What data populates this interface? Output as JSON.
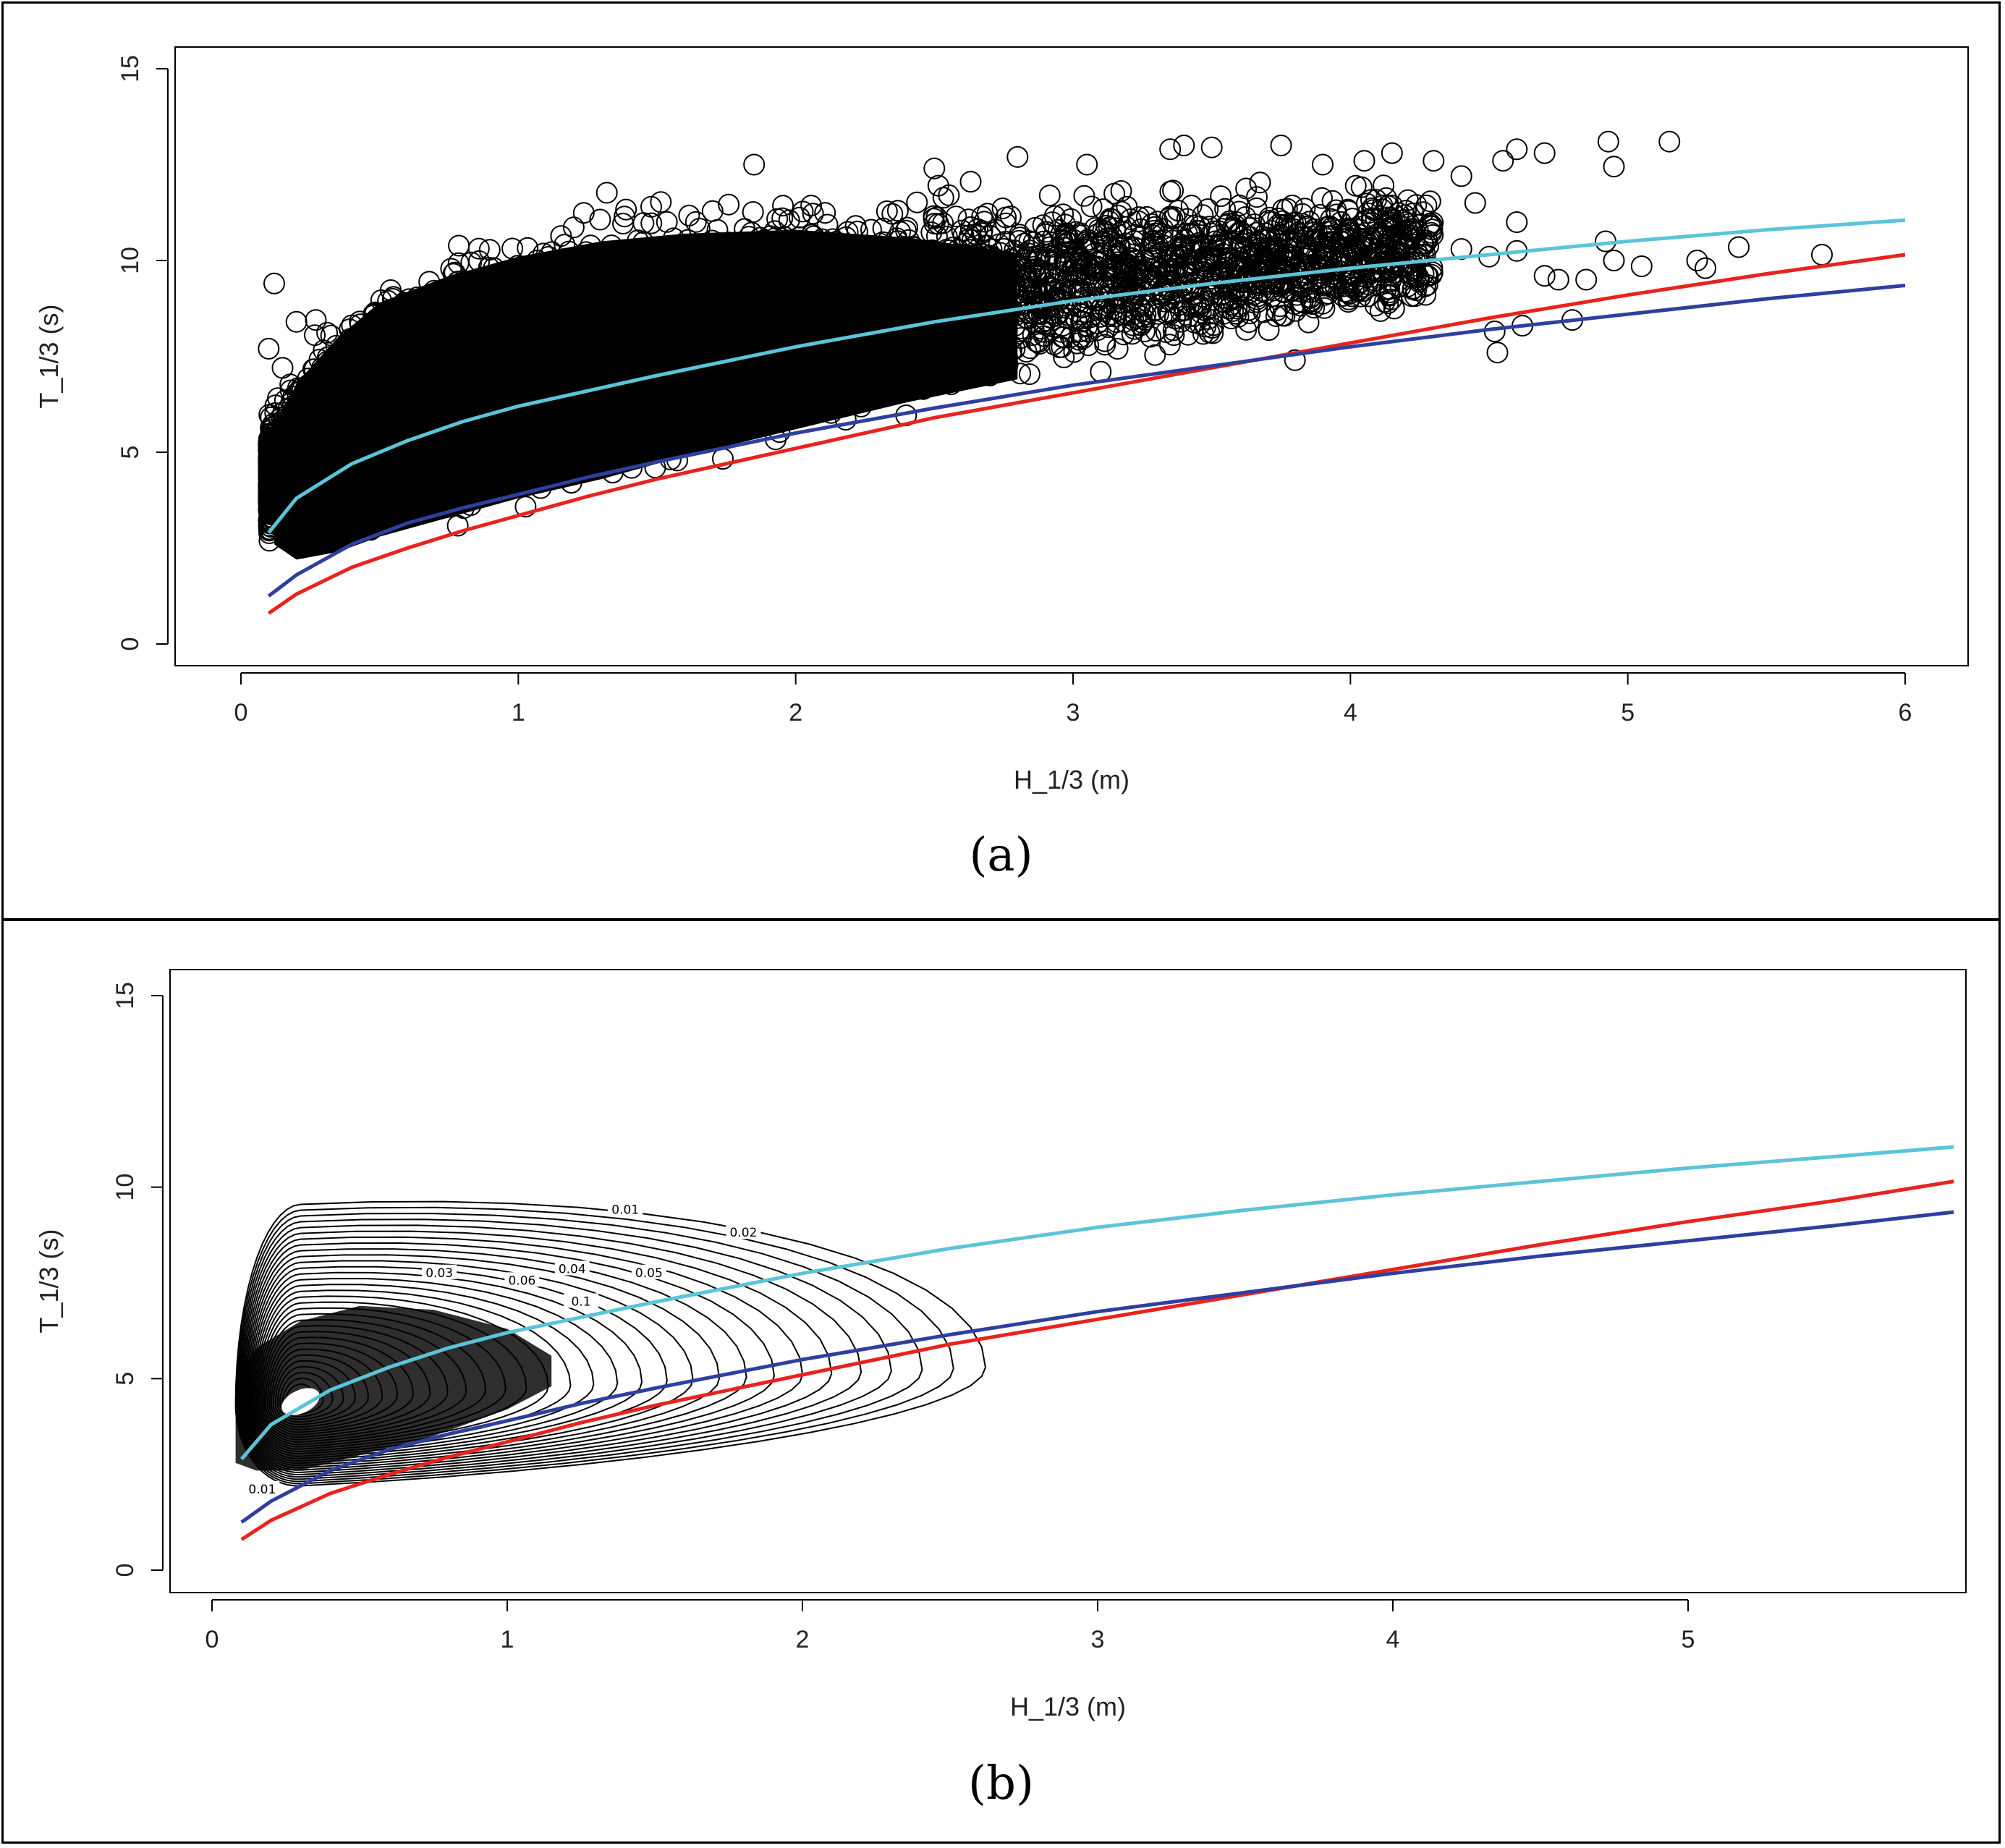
{
  "colors": {
    "cyan_line": "#5BC4D9",
    "red_line": "#E8231E",
    "blue_line": "#2F3F9F",
    "points": "#000000",
    "frame": "#000000"
  },
  "chart_data": [
    {
      "panel_label": "(a)",
      "type": "scatter",
      "xlabel": "H_1/3 (m)",
      "ylabel": "T_1/3 (s)",
      "xlim": [
        0,
        6
      ],
      "ylim": [
        0,
        15
      ],
      "x_ticks": [
        "0",
        "1",
        "2",
        "3",
        "4",
        "5",
        "6"
      ],
      "y_ticks": [
        "0",
        "5",
        "10",
        "15"
      ],
      "series": [
        {
          "x": [
            0.1,
            0.2,
            0.4,
            0.6,
            0.8,
            1.0,
            1.25,
            1.5,
            2.0,
            2.5,
            3.0,
            3.5,
            4.0,
            4.5,
            5.0,
            5.5,
            6.0
          ],
          "y": [
            2.9,
            3.8,
            4.7,
            5.3,
            5.8,
            6.2,
            6.6,
            7.0,
            7.75,
            8.4,
            8.95,
            9.4,
            9.8,
            10.15,
            10.5,
            10.8,
            11.05
          ]
        },
        {
          "x": [
            0.1,
            0.2,
            0.4,
            0.6,
            0.8,
            1.0,
            1.25,
            1.5,
            2.0,
            2.5,
            3.0,
            3.5,
            4.0,
            4.5,
            5.0,
            5.5,
            6.0
          ],
          "y": [
            0.8,
            1.3,
            2.0,
            2.5,
            2.95,
            3.35,
            3.85,
            4.3,
            5.1,
            5.9,
            6.55,
            7.2,
            7.85,
            8.5,
            9.1,
            9.65,
            10.15
          ]
        },
        {
          "x": [
            0.1,
            0.2,
            0.4,
            0.6,
            0.8,
            1.0,
            1.25,
            1.5,
            2.0,
            2.5,
            3.0,
            3.5,
            4.0,
            4.5,
            5.0,
            5.5,
            6.0
          ],
          "y": [
            1.25,
            1.8,
            2.6,
            3.15,
            3.55,
            3.9,
            4.35,
            4.75,
            5.5,
            6.15,
            6.75,
            7.25,
            7.75,
            8.2,
            8.6,
            9.0,
            9.35
          ]
        }
      ],
      "scatter_envelope": {
        "x": [
          0.1,
          0.2,
          0.3,
          0.5,
          0.7,
          1.0,
          1.3,
          1.6,
          2.0,
          2.3,
          2.6,
          3.0,
          3.3,
          3.6,
          4.0,
          4.3
        ],
        "y_min": [
          2.4,
          1.9,
          2.0,
          2.3,
          2.7,
          3.1,
          3.6,
          4.3,
          5.0,
          5.6,
          6.1,
          6.7,
          7.2,
          7.5,
          7.9,
          8.3
        ],
        "y_max": [
          6.2,
          7.5,
          8.5,
          9.8,
          10.7,
          11.5,
          11.9,
          12.1,
          12.2,
          12.3,
          12.4,
          12.4,
          12.3,
          12.3,
          12.4,
          12.3
        ]
      },
      "outliers": [
        [
          0.12,
          9.4
        ],
        [
          0.1,
          7.7
        ],
        [
          0.15,
          7.2
        ],
        [
          0.2,
          8.4
        ],
        [
          0.27,
          8.45
        ],
        [
          3.35,
          12.9
        ],
        [
          3.4,
          13.0
        ],
        [
          3.5,
          12.95
        ],
        [
          3.75,
          13.0
        ],
        [
          3.9,
          12.5
        ],
        [
          4.05,
          12.6
        ],
        [
          4.15,
          12.8
        ],
        [
          4.3,
          12.6
        ],
        [
          4.4,
          12.2
        ],
        [
          4.55,
          12.6
        ],
        [
          4.6,
          12.9
        ],
        [
          4.7,
          12.8
        ],
        [
          4.93,
          13.1
        ],
        [
          4.95,
          12.45
        ],
        [
          5.15,
          13.1
        ],
        [
          4.4,
          10.3
        ],
        [
          4.5,
          10.1
        ],
        [
          4.6,
          10.25
        ],
        [
          4.7,
          9.6
        ],
        [
          4.75,
          9.5
        ],
        [
          4.85,
          9.5
        ],
        [
          4.92,
          10.5
        ],
        [
          4.95,
          10.0
        ],
        [
          5.05,
          9.85
        ],
        [
          5.25,
          10.0
        ],
        [
          5.28,
          9.8
        ],
        [
          5.4,
          10.35
        ],
        [
          5.7,
          10.15
        ],
        [
          4.52,
          8.15
        ],
        [
          4.53,
          7.6
        ],
        [
          4.62,
          8.3
        ],
        [
          4.8,
          8.45
        ],
        [
          3.8,
          7.4
        ],
        [
          3.1,
          7.1
        ],
        [
          2.7,
          7.0
        ],
        [
          2.8,
          12.7
        ],
        [
          3.05,
          12.5
        ],
        [
          2.5,
          12.4
        ],
        [
          1.85,
          12.5
        ],
        [
          4.6,
          11.0
        ],
        [
          4.2,
          11.3
        ],
        [
          4.45,
          11.5
        ],
        [
          3.95,
          11.2
        ]
      ]
    },
    {
      "panel_label": "(b)",
      "type": "line",
      "xlabel": "H_1/3 (m)",
      "ylabel": "T_1/3 (s)",
      "xlim": [
        0,
        5.9
      ],
      "ylim": [
        0,
        15
      ],
      "x_ticks": [
        "0",
        "1",
        "2",
        "3",
        "4",
        "5"
      ],
      "y_ticks": [
        "0",
        "5",
        "10",
        "15"
      ],
      "series": [
        {
          "x": [
            0.1,
            0.2,
            0.4,
            0.6,
            0.8,
            1.0,
            1.25,
            1.5,
            2.0,
            2.5,
            3.0,
            3.5,
            4.0,
            4.5,
            5.0,
            5.5,
            5.9
          ],
          "y": [
            2.9,
            3.8,
            4.7,
            5.3,
            5.8,
            6.2,
            6.6,
            7.0,
            7.75,
            8.4,
            8.95,
            9.4,
            9.8,
            10.15,
            10.5,
            10.8,
            11.05
          ]
        },
        {
          "x": [
            0.1,
            0.2,
            0.4,
            0.6,
            0.8,
            1.0,
            1.25,
            1.5,
            2.0,
            2.5,
            3.0,
            3.5,
            4.0,
            4.5,
            5.0,
            5.5,
            5.9
          ],
          "y": [
            0.8,
            1.3,
            2.0,
            2.5,
            2.95,
            3.35,
            3.85,
            4.3,
            5.1,
            5.9,
            6.55,
            7.2,
            7.85,
            8.5,
            9.1,
            9.65,
            10.15
          ]
        },
        {
          "x": [
            0.1,
            0.2,
            0.4,
            0.6,
            0.8,
            1.0,
            1.25,
            1.5,
            2.0,
            2.5,
            3.0,
            3.5,
            4.0,
            4.5,
            5.0,
            5.5,
            5.9
          ],
          "y": [
            1.25,
            1.8,
            2.6,
            3.15,
            3.55,
            3.9,
            4.35,
            4.75,
            5.5,
            6.15,
            6.75,
            7.25,
            7.75,
            8.2,
            8.6,
            9.0,
            9.35
          ]
        }
      ],
      "contour_labels": [
        {
          "text": "0.01",
          "x": 1.4,
          "y": 9.4
        },
        {
          "text": "0.02",
          "x": 1.8,
          "y": 8.8
        },
        {
          "text": "0.03",
          "x": 0.77,
          "y": 7.75
        },
        {
          "text": "0.06",
          "x": 1.05,
          "y": 7.55
        },
        {
          "text": "0.04",
          "x": 1.22,
          "y": 7.85
        },
        {
          "text": "0.05",
          "x": 1.48,
          "y": 7.75
        },
        {
          "text": "0.1",
          "x": 1.25,
          "y": 7.0
        },
        {
          "text": "0.01",
          "x": 0.17,
          "y": 2.1
        }
      ],
      "contour_core": {
        "h": 0.3,
        "t": 4.4
      }
    }
  ]
}
